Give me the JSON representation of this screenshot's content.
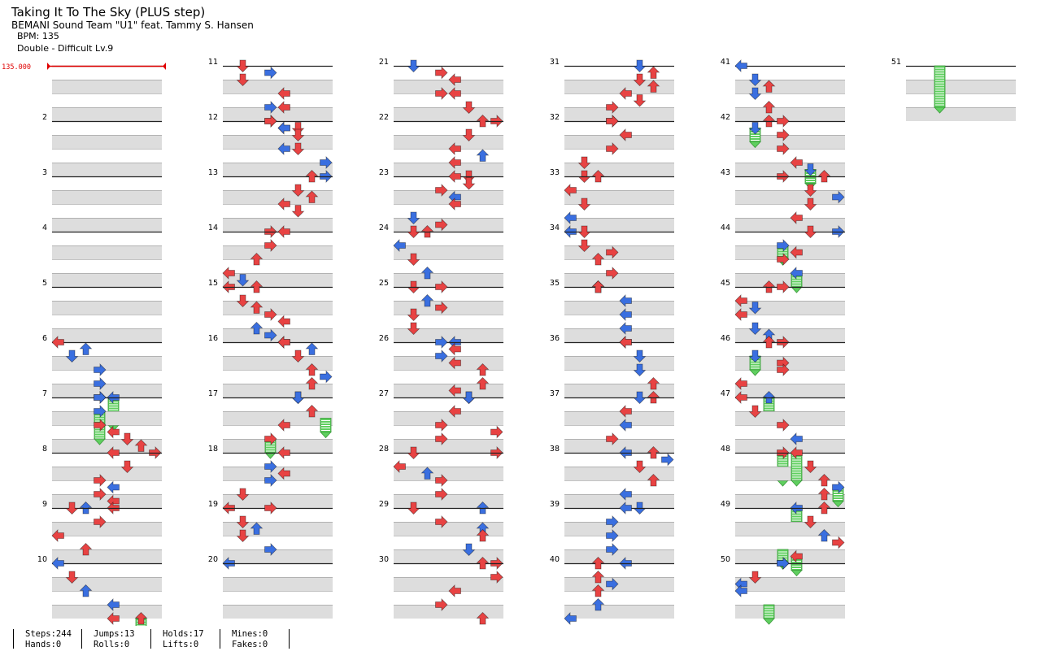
{
  "header": {
    "title": "Taking It To The Sky (PLUS step)",
    "artist": "BEMANI Sound Team \"U1\" feat. Tammy S. Hansen",
    "bpm": "BPM: 135",
    "difficulty": "Double - Difficult  Lv.9"
  },
  "chart_data": {
    "type": "step-chart",
    "mode": "Double",
    "panels": [
      "left",
      "down",
      "up",
      "right",
      "left",
      "down",
      "up",
      "right"
    ],
    "bpm_change": "135.000",
    "beats_per_measure": 4,
    "total_measures": 51,
    "colors": {
      "red_note": "#e84343",
      "blue_note": "#3a6fe0",
      "hold": "#5fcf5f",
      "bpm_marker": "#e00000",
      "beat_band": "#dddddd"
    },
    "measures": {
      "1": [],
      "2": [],
      "3": [],
      "4": [],
      "5": [],
      "6": [
        [
          0,
          0,
          "r"
        ],
        [
          0.5,
          2,
          "b"
        ],
        [
          1,
          1,
          "b"
        ],
        [
          2,
          3,
          "b"
        ],
        [
          3,
          3,
          "b"
        ],
        [
          4,
          3,
          "b"
        ],
        [
          4,
          4,
          "b",
          2
        ]
      ],
      "7": [
        [
          0,
          3,
          "b"
        ],
        [
          1,
          3,
          "b",
          2
        ],
        [
          2,
          3,
          "r"
        ],
        [
          2.5,
          4,
          "r"
        ],
        [
          3,
          5,
          "r"
        ],
        [
          3.5,
          6,
          "r"
        ],
        [
          4,
          7,
          "r"
        ]
      ],
      "8": [
        [
          0,
          4,
          "r"
        ],
        [
          1,
          5,
          "r"
        ],
        [
          2,
          3,
          "r"
        ],
        [
          2.5,
          4,
          "b"
        ],
        [
          3,
          3,
          "r"
        ],
        [
          3.5,
          4,
          "r"
        ],
        [
          4,
          2,
          "b"
        ],
        [
          4,
          4,
          "r"
        ]
      ],
      "9": [
        [
          0,
          1,
          "r"
        ],
        [
          1,
          3,
          "r"
        ],
        [
          2,
          0,
          "r"
        ],
        [
          3,
          2,
          "r"
        ]
      ],
      "10": [
        [
          0,
          0,
          "b"
        ],
        [
          1,
          1,
          "r"
        ],
        [
          2,
          2,
          "b"
        ],
        [
          3,
          4,
          "b"
        ],
        [
          4,
          4,
          "r"
        ],
        [
          4,
          6,
          "r",
          1
        ]
      ],
      "11": [
        [
          0,
          1,
          "r"
        ],
        [
          0.5,
          3,
          "b"
        ],
        [
          1,
          1,
          "r"
        ],
        [
          2,
          4,
          "r"
        ],
        [
          3,
          3,
          "b"
        ],
        [
          3,
          4,
          "r"
        ],
        [
          4,
          3,
          "r"
        ],
        [
          4.5,
          4,
          "r"
        ],
        [
          4.5,
          5,
          "r"
        ]
      ],
      "12": [
        [
          0,
          3,
          "r"
        ],
        [
          0.5,
          4,
          "b"
        ],
        [
          1,
          5,
          "r"
        ],
        [
          2,
          4,
          "b"
        ],
        [
          2,
          5,
          "r"
        ],
        [
          3,
          7,
          "b"
        ],
        [
          4,
          7,
          "b"
        ]
      ],
      "13": [
        [
          0,
          6,
          "r"
        ],
        [
          1,
          5,
          "r"
        ],
        [
          1.5,
          6,
          "r"
        ],
        [
          2,
          4,
          "r"
        ],
        [
          2.5,
          5,
          "r"
        ],
        [
          4,
          3,
          "r"
        ]
      ],
      "14": [
        [
          0,
          4,
          "r"
        ],
        [
          1,
          3,
          "r"
        ],
        [
          2,
          2,
          "r"
        ],
        [
          3,
          0,
          "r"
        ],
        [
          3.5,
          1,
          "b"
        ],
        [
          4,
          0,
          "r"
        ]
      ],
      "15": [
        [
          0,
          2,
          "r"
        ],
        [
          1,
          1,
          "r"
        ],
        [
          1.5,
          2,
          "r"
        ],
        [
          2,
          3,
          "r"
        ],
        [
          2.5,
          4,
          "r"
        ],
        [
          3,
          2,
          "b"
        ],
        [
          3.5,
          3,
          "b"
        ],
        [
          4,
          4,
          "r"
        ]
      ],
      "16": [
        [
          0,
          4,
          "r"
        ],
        [
          0.5,
          6,
          "b"
        ],
        [
          1,
          5,
          "r"
        ],
        [
          2,
          6,
          "r"
        ],
        [
          2.5,
          7,
          "b"
        ],
        [
          3,
          6,
          "r"
        ],
        [
          4,
          5,
          "b"
        ]
      ],
      "17": [
        [
          0,
          5,
          "b"
        ],
        [
          1,
          6,
          "r"
        ],
        [
          1.5,
          7,
          "g",
          1
        ],
        [
          2,
          4,
          "r"
        ],
        [
          3,
          3,
          "r",
          1
        ]
      ],
      "18": [
        [
          0,
          4,
          "r"
        ],
        [
          1,
          3,
          "b"
        ],
        [
          1.5,
          4,
          "r"
        ],
        [
          2,
          3,
          "b"
        ],
        [
          3,
          1,
          "r"
        ],
        [
          4,
          0,
          "r"
        ]
      ],
      "19": [
        [
          0,
          3,
          "r"
        ],
        [
          1,
          1,
          "r"
        ],
        [
          1.5,
          2,
          "b"
        ],
        [
          2,
          1,
          "r"
        ],
        [
          3,
          3,
          "b"
        ],
        [
          4,
          0,
          "b"
        ]
      ],
      "20": [],
      "21": [
        [
          0,
          1,
          "b"
        ],
        [
          0.5,
          3,
          "r"
        ],
        [
          1,
          4,
          "r"
        ],
        [
          2,
          3,
          "r"
        ],
        [
          2,
          4,
          "r"
        ],
        [
          3,
          5,
          "r"
        ],
        [
          4,
          7,
          "r"
        ]
      ],
      "22": [
        [
          0,
          6,
          "r"
        ],
        [
          1,
          5,
          "r"
        ],
        [
          2,
          4,
          "r"
        ],
        [
          2.5,
          6,
          "b"
        ],
        [
          3,
          4,
          "r"
        ],
        [
          4,
          5,
          "r"
        ]
      ],
      "23": [
        [
          0,
          4,
          "r"
        ],
        [
          0.5,
          5,
          "r"
        ],
        [
          1,
          3,
          "r"
        ],
        [
          1.5,
          4,
          "b"
        ],
        [
          2,
          4,
          "r"
        ],
        [
          3,
          1,
          "b"
        ],
        [
          3.5,
          3,
          "r"
        ],
        [
          4,
          2,
          "r"
        ]
      ],
      "24": [
        [
          0,
          1,
          "r"
        ],
        [
          1,
          0,
          "b"
        ],
        [
          2,
          1,
          "r"
        ],
        [
          3,
          2,
          "b"
        ],
        [
          4,
          1,
          "r"
        ]
      ],
      "25": [
        [
          0,
          3,
          "r"
        ],
        [
          1,
          2,
          "b"
        ],
        [
          1.5,
          3,
          "r"
        ],
        [
          2,
          1,
          "r"
        ],
        [
          3,
          1,
          "r"
        ],
        [
          4,
          4,
          "b"
        ]
      ],
      "26": [
        [
          0,
          3,
          "b"
        ],
        [
          0.5,
          4,
          "r"
        ],
        [
          1,
          3,
          "b"
        ],
        [
          1.5,
          4,
          "r"
        ],
        [
          2,
          6,
          "r"
        ],
        [
          3,
          6,
          "r"
        ],
        [
          3.5,
          4,
          "r"
        ],
        [
          4,
          5,
          "r"
        ]
      ],
      "27": [
        [
          0,
          5,
          "b"
        ],
        [
          1,
          4,
          "r"
        ],
        [
          2,
          3,
          "r"
        ],
        [
          2.5,
          7,
          "r"
        ],
        [
          3,
          3,
          "r"
        ],
        [
          4,
          7,
          "r"
        ]
      ],
      "28": [
        [
          0,
          1,
          "r"
        ],
        [
          1,
          0,
          "r"
        ],
        [
          1.5,
          2,
          "b"
        ],
        [
          2,
          3,
          "r"
        ],
        [
          3,
          3,
          "r"
        ],
        [
          4,
          6,
          "b"
        ]
      ],
      "29": [
        [
          0,
          1,
          "r"
        ],
        [
          1,
          3,
          "r"
        ],
        [
          1.5,
          6,
          "b"
        ],
        [
          2,
          6,
          "r"
        ],
        [
          3,
          5,
          "b"
        ],
        [
          4,
          7,
          "r"
        ]
      ],
      "30": [
        [
          0,
          6,
          "r"
        ],
        [
          1,
          7,
          "r"
        ],
        [
          2,
          4,
          "r"
        ],
        [
          3,
          3,
          "r"
        ],
        [
          4,
          6,
          "r"
        ]
      ],
      "31": [
        [
          0,
          5,
          "b"
        ],
        [
          0.5,
          6,
          "r"
        ],
        [
          1,
          5,
          "r"
        ],
        [
          1.5,
          6,
          "r"
        ],
        [
          2,
          4,
          "r"
        ],
        [
          2.5,
          5,
          "r"
        ],
        [
          3,
          3,
          "r"
        ],
        [
          4,
          3,
          "r"
        ]
      ],
      "32": [
        [
          0,
          3,
          "r"
        ],
        [
          1,
          4,
          "r"
        ],
        [
          2,
          3,
          "r"
        ],
        [
          3,
          1,
          "r"
        ],
        [
          4,
          1,
          "r"
        ]
      ],
      "33": [
        [
          0,
          2,
          "r"
        ],
        [
          1,
          0,
          "r"
        ],
        [
          2,
          1,
          "r"
        ],
        [
          3,
          0,
          "b"
        ],
        [
          4,
          0,
          "b"
        ]
      ],
      "34": [
        [
          0,
          1,
          "r"
        ],
        [
          1,
          1,
          "r"
        ],
        [
          1.5,
          3,
          "r"
        ],
        [
          2,
          2,
          "r"
        ],
        [
          3,
          3,
          "r"
        ],
        [
          4,
          2,
          "r"
        ]
      ],
      "35": [
        [
          0,
          2,
          "r"
        ],
        [
          1,
          4,
          "b"
        ],
        [
          2,
          4,
          "b"
        ],
        [
          3,
          4,
          "b"
        ],
        [
          4,
          4,
          "b"
        ]
      ],
      "36": [
        [
          0,
          4,
          "r"
        ],
        [
          1,
          5,
          "b"
        ],
        [
          2,
          5,
          "b"
        ],
        [
          3,
          6,
          "r"
        ],
        [
          4,
          6,
          "r"
        ]
      ],
      "37": [
        [
          0,
          5,
          "b"
        ],
        [
          1,
          4,
          "r"
        ],
        [
          2,
          4,
          "b"
        ],
        [
          3,
          3,
          "r"
        ],
        [
          4,
          4,
          "b"
        ]
      ],
      "38": [
        [
          0,
          6,
          "r"
        ],
        [
          0.5,
          7,
          "b"
        ],
        [
          1,
          5,
          "r"
        ],
        [
          2,
          6,
          "r"
        ],
        [
          3,
          4,
          "b"
        ],
        [
          4,
          5,
          "b"
        ]
      ],
      "39": [
        [
          0,
          4,
          "b"
        ],
        [
          1,
          3,
          "b"
        ],
        [
          2,
          3,
          "b"
        ],
        [
          3,
          3,
          "b"
        ],
        [
          4,
          4,
          "b"
        ]
      ],
      "40": [
        [
          0,
          2,
          "r"
        ],
        [
          1,
          2,
          "r"
        ],
        [
          1.5,
          3,
          "b"
        ],
        [
          2,
          2,
          "r"
        ],
        [
          3,
          2,
          "b"
        ],
        [
          4,
          0,
          "b"
        ]
      ],
      "41": [
        [
          0,
          0,
          "b"
        ],
        [
          1,
          1,
          "b"
        ],
        [
          1.5,
          2,
          "r"
        ],
        [
          2,
          1,
          "b"
        ],
        [
          3,
          2,
          "r"
        ],
        [
          4,
          2,
          "r"
        ]
      ],
      "42": [
        [
          0,
          3,
          "r"
        ],
        [
          0.5,
          1,
          "b",
          1
        ],
        [
          1,
          3,
          "r"
        ],
        [
          2,
          3,
          "r"
        ],
        [
          3,
          4,
          "r"
        ],
        [
          3.5,
          5,
          "b",
          1
        ],
        [
          4,
          3,
          "r"
        ]
      ],
      "43": [
        [
          0,
          6,
          "r"
        ],
        [
          1,
          5,
          "r"
        ],
        [
          1.5,
          7,
          "b"
        ],
        [
          2,
          5,
          "r"
        ],
        [
          3,
          4,
          "r"
        ],
        [
          4,
          7,
          "b"
        ]
      ],
      "44": [
        [
          0,
          5,
          "r"
        ],
        [
          1,
          3,
          "b",
          1
        ],
        [
          1.5,
          4,
          "r"
        ],
        [
          2,
          3,
          "r"
        ],
        [
          3,
          4,
          "b",
          1
        ],
        [
          4,
          2,
          "r"
        ]
      ],
      "45": [
        [
          0,
          3,
          "r"
        ],
        [
          1,
          0,
          "r"
        ],
        [
          1.5,
          1,
          "b"
        ],
        [
          2,
          0,
          "r"
        ],
        [
          3,
          1,
          "b"
        ],
        [
          3.5,
          2,
          "b"
        ],
        [
          4,
          3,
          "r"
        ]
      ],
      "46": [
        [
          0,
          2,
          "r"
        ],
        [
          1,
          1,
          "b",
          1
        ],
        [
          1.5,
          3,
          "r"
        ],
        [
          2,
          3,
          "r"
        ],
        [
          3,
          0,
          "r"
        ],
        [
          4,
          2,
          "b",
          1
        ]
      ],
      "47": [
        [
          0,
          0,
          "r"
        ],
        [
          1,
          1,
          "r"
        ],
        [
          2,
          3,
          "r"
        ],
        [
          3,
          4,
          "b"
        ],
        [
          4,
          3,
          "r",
          2
        ]
      ],
      "48": [
        [
          0,
          4,
          "r",
          2
        ],
        [
          1,
          5,
          "r"
        ],
        [
          2,
          6,
          "r"
        ],
        [
          2.5,
          7,
          "b",
          1
        ],
        [
          3,
          6,
          "r"
        ],
        [
          4,
          4,
          "b",
          1
        ]
      ],
      "49": [
        [
          0,
          6,
          "r"
        ],
        [
          1,
          5,
          "r"
        ],
        [
          2,
          6,
          "b"
        ],
        [
          2.5,
          7,
          "r"
        ],
        [
          3,
          3,
          "g",
          1
        ],
        [
          3.5,
          4,
          "r",
          1
        ],
        [
          4,
          3,
          "r"
        ]
      ],
      "50": [
        [
          0,
          3,
          "b"
        ],
        [
          1,
          1,
          "r"
        ],
        [
          1.5,
          0,
          "b"
        ],
        [
          2,
          0,
          "b"
        ],
        [
          3,
          2,
          "g",
          1
        ]
      ],
      "51": [
        [
          0,
          2,
          "g",
          3
        ]
      ]
    }
  },
  "stats": {
    "steps": "Steps:244",
    "hands": "Hands:0",
    "jumps": "Jumps:13",
    "rolls": "Rolls:0",
    "holds": "Holds:17",
    "lifts": "Lifts:0",
    "mines": "Mines:0",
    "fakes": "Fakes:0"
  }
}
